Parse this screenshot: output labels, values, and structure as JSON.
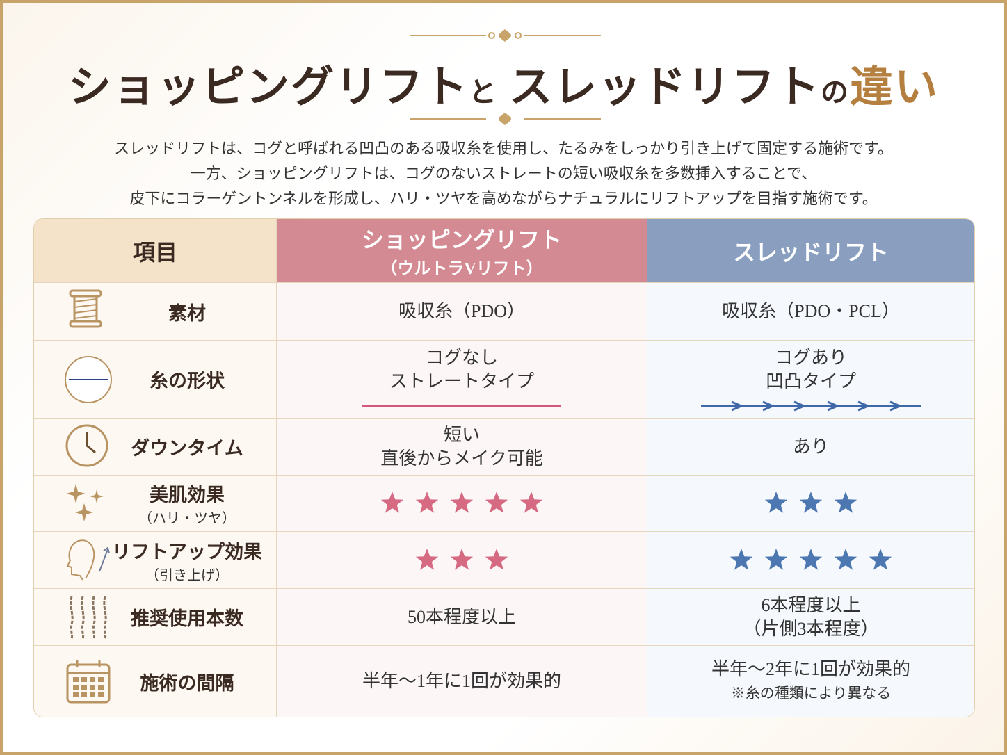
{
  "header": {
    "title": [
      "ショッピングリフト",
      "と",
      "スレッドリフト",
      "の",
      "違い"
    ],
    "intro": [
      "スレッドリフトは、コグと呼ばれる凹凸のある吸収糸を使用し、たるみをしっかり引き上げて固定する施術です。",
      "一方、ショッピングリフトは、コグのないストレートの短い吸収糸を多数挿入することで、",
      "皮下にコラーゲントンネルを形成し、ハリ・ツヤを高めながらナチュラルにリフトアップを目指す施術です。"
    ]
  },
  "table": {
    "columns": {
      "item": "項目",
      "shopping": [
        "ショッピングリフト",
        "（ウルトラVリフト）"
      ],
      "thread": "スレッドリフト"
    },
    "rows": [
      {
        "label": [
          "素材"
        ],
        "shopping": [
          "吸収糸（PDO）"
        ],
        "thread": [
          "吸収糸（PDO・PCL）"
        ]
      },
      {
        "label": [
          "糸の形状"
        ],
        "shopping": [
          "コグなし",
          "ストレートタイプ"
        ],
        "thread": [
          "コグあり",
          "凹凸タイプ"
        ]
      },
      {
        "label": [
          "ダウンタイム"
        ],
        "shopping": [
          "短い",
          "直後からメイク可能"
        ],
        "thread": [
          "あり"
        ]
      },
      {
        "label": [
          "美肌効果",
          "（ハリ・ツヤ）"
        ],
        "shopping_stars": 5,
        "thread_stars": 3
      },
      {
        "label": [
          "リフトアップ効果",
          "（引き上げ）"
        ],
        "shopping_stars": 3,
        "thread_stars": 5
      },
      {
        "label": [
          "推奨使用本数"
        ],
        "shopping": [
          "50本程度以上"
        ],
        "thread": [
          "6本程度以上",
          "（片側3本程度）"
        ]
      },
      {
        "label": [
          "施術の間隔"
        ],
        "shopping": [
          "半年～1年に1回が効果的"
        ],
        "thread": [
          "半年～2年に1回が効果的",
          "※糸の種類により異なる"
        ]
      }
    ]
  }
}
